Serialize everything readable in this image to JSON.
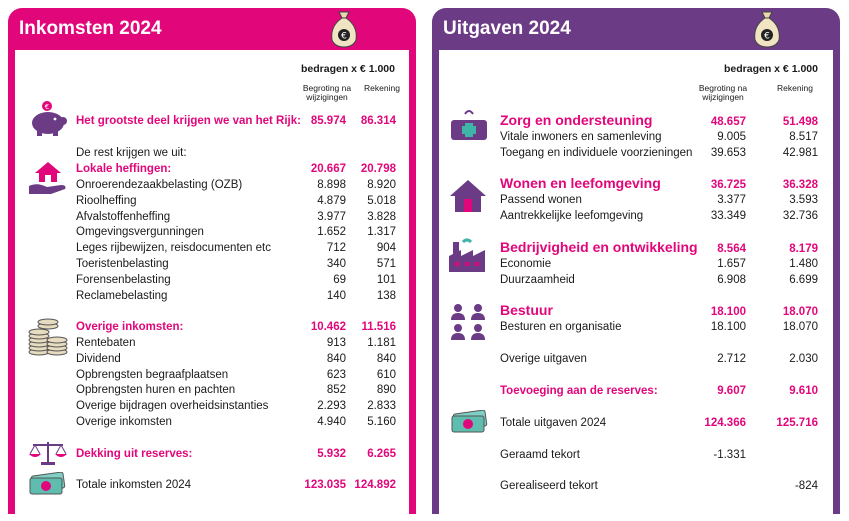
{
  "income": {
    "title": "Inkomsten 2024",
    "unit": "bedragen x € 1.000",
    "col1": "Begroting na wijzigingen",
    "col2": "Rekening",
    "main": {
      "label": "Het grootste deel krijgen we van het Rijk:",
      "b": "85.974",
      "r": "86.314"
    },
    "rest_intro": "De rest krijgen we uit:",
    "lokale": {
      "label": "Lokale heffingen:",
      "b": "20.667",
      "r": "20.798"
    },
    "lokale_items": [
      {
        "label": "Onroerendezaakbelasting (OZB)",
        "b": "8.898",
        "r": "8.920"
      },
      {
        "label": "Rioolheffing",
        "b": "4.879",
        "r": "5.018"
      },
      {
        "label": "Afvalstoffenheffing",
        "b": "3.977",
        "r": "3.828"
      },
      {
        "label": "Omgevingsvergunningen",
        "b": "1.652",
        "r": "1.317"
      },
      {
        "label": "Leges rijbewijzen, reisdocumenten etc",
        "b": "712",
        "r": "904"
      },
      {
        "label": "Toeristenbelasting",
        "b": "340",
        "r": "571"
      },
      {
        "label": "Forensenbelasting",
        "b": "69",
        "r": "101"
      },
      {
        "label": "Reclamebelasting",
        "b": "140",
        "r": "138"
      }
    ],
    "overige": {
      "label": "Overige inkomsten:",
      "b": "10.462",
      "r": "11.516"
    },
    "overige_items": [
      {
        "label": "Rentebaten",
        "b": "913",
        "r": "1.181"
      },
      {
        "label": "Dividend",
        "b": "840",
        "r": "840"
      },
      {
        "label": "Opbrengsten begraafplaatsen",
        "b": "623",
        "r": "610"
      },
      {
        "label": "Opbrengsten huren en pachten",
        "b": "852",
        "r": "890"
      },
      {
        "label": "Overige bijdragen overheidsinstanties",
        "b": "2.293",
        "r": "2.833"
      },
      {
        "label": "Overige inkomsten",
        "b": "4.940",
        "r": "5.160"
      }
    ],
    "dekking": {
      "label": "Dekking uit reserves:",
      "b": "5.932",
      "r": "6.265"
    },
    "totaal": {
      "label": "Totale inkomsten 2024",
      "b": "123.035",
      "r": "124.892"
    }
  },
  "expenses": {
    "title": "Uitgaven 2024",
    "unit": "bedragen x € 1.000",
    "col1": "Begroting na wijzigingen",
    "col2": "Rekening",
    "zorg": {
      "label": "Zorg en ondersteuning",
      "b": "48.657",
      "r": "51.498"
    },
    "zorg_items": [
      {
        "label": "Vitale inwoners en samenleving",
        "b": "9.005",
        "r": "8.517"
      },
      {
        "label": "Toegang en individuele voorzieningen",
        "b": "39.653",
        "r": "42.981"
      }
    ],
    "wonen": {
      "label": "Wonen en leefomgeving",
      "b": "36.725",
      "r": "36.328"
    },
    "wonen_items": [
      {
        "label": "Passend wonen",
        "b": "3.377",
        "r": "3.593"
      },
      {
        "label": "Aantrekkelijke leefomgeving",
        "b": "33.349",
        "r": "32.736"
      }
    ],
    "bedrijf": {
      "label": "Bedrijvigheid en ontwikkeling",
      "b": "8.564",
      "r": "8.179"
    },
    "bedrijf_items": [
      {
        "label": "Economie",
        "b": "1.657",
        "r": "1.480"
      },
      {
        "label": "Duurzaamheid",
        "b": "6.908",
        "r": "6.699"
      }
    ],
    "bestuur": {
      "label": "Bestuur",
      "b": "18.100",
      "r": "18.070"
    },
    "bestuur_items": [
      {
        "label": "Besturen en organisatie",
        "b": "18.100",
        "r": "18.070"
      }
    ],
    "overig": {
      "label": "Overige uitgaven",
      "b": "2.712",
      "r": "2.030"
    },
    "toevoeging": {
      "label": "Toevoeging aan de reserves:",
      "b": "9.607",
      "r": "9.610"
    },
    "totaal": {
      "label": "Totale uitgaven 2024",
      "b": "124.366",
      "r": "125.716"
    },
    "geraamd": {
      "label": "Geraamd tekort",
      "b": "-1.331"
    },
    "gerealiseerd": {
      "label": "Gerealiseerd tekort",
      "r": "-824"
    }
  },
  "colors": {
    "pink": "#e2067b",
    "purple": "#6b3b86"
  },
  "icons": [
    "money-bag-icon",
    "piggy-bank-icon",
    "house-hand-icon",
    "coin-stack-icon",
    "scales-icon",
    "banknote-icon",
    "ambulance-icon",
    "house-icon",
    "factory-icon",
    "people-icon"
  ]
}
